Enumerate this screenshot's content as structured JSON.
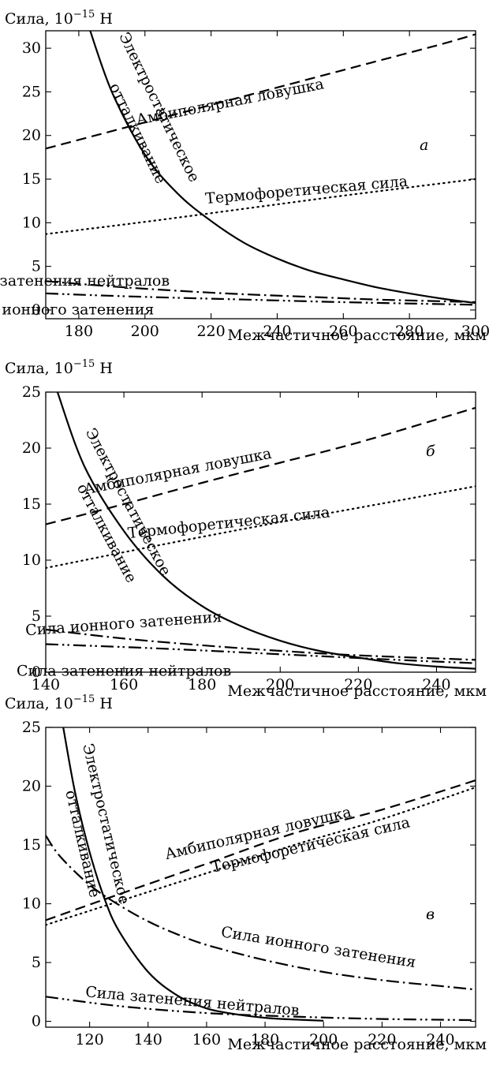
{
  "chart_data": [
    {
      "type": "line",
      "panel_label": "а",
      "ylabel": "Сила, 10⁻¹⁵ Н",
      "xlabel": "Межчастичное расстояние, мкм",
      "xlim": [
        170,
        300
      ],
      "ylim": [
        -1,
        32
      ],
      "xticks": [
        180,
        200,
        220,
        240,
        260,
        280,
        300
      ],
      "yticks": [
        0,
        5,
        10,
        15,
        20,
        25,
        30
      ],
      "grid": false,
      "series": [
        {
          "name": "Амбиполярная ловушка",
          "style": "dashed",
          "x": [
            170,
            185,
            200,
            215,
            230,
            245,
            260,
            275,
            290,
            300
          ],
          "y": [
            18.5,
            20.0,
            21.5,
            23.0,
            24.5,
            26.0,
            27.5,
            29.0,
            30.5,
            31.6
          ]
        },
        {
          "name": "Термофоретическая сила",
          "style": "dotted",
          "x": [
            170,
            200,
            230,
            260,
            300
          ],
          "y": [
            8.7,
            10.1,
            11.6,
            13.1,
            15.0
          ]
        },
        {
          "name": "Электростатическое отталкивание",
          "style": "solid",
          "x": [
            183,
            190,
            200,
            210,
            220,
            230,
            240,
            250,
            260,
            270,
            280,
            290,
            300
          ],
          "y": [
            32.5,
            25.0,
            17.8,
            13.3,
            10.2,
            7.7,
            5.9,
            4.5,
            3.5,
            2.6,
            1.9,
            1.3,
            0.8
          ]
        },
        {
          "name": "Сила затенения нейтралов",
          "style": "dashdot",
          "x": [
            170,
            190,
            210,
            230,
            250,
            270,
            290,
            300
          ],
          "y": [
            3.3,
            2.7,
            2.2,
            1.8,
            1.5,
            1.2,
            1.0,
            0.9
          ]
        },
        {
          "name": "Сила ионного затенения",
          "style": "dashdotdot",
          "x": [
            170,
            200,
            230,
            260,
            300
          ],
          "y": [
            1.9,
            1.5,
            1.2,
            0.9,
            0.6
          ]
        }
      ],
      "annotations": [
        {
          "text": "Амбиполярная ловушка",
          "x": 226,
          "y": 23.3,
          "angle_deg": -11
        },
        {
          "text": "Термофоретическая сила",
          "x": 249,
          "y": 13.2,
          "angle_deg": -5
        },
        {
          "text": "Электро­статическое",
          "x": 203,
          "y": 23.0,
          "angle_deg": 64
        },
        {
          "text": "отталкивание",
          "x": 196.5,
          "y": 20.0,
          "angle_deg": 64
        },
        {
          "text": "Сила затенения нейтралов",
          "x": 175,
          "y": 2.8,
          "angle_deg": 0
        },
        {
          "text": "Сила ионного затенения",
          "x": 173,
          "y": -0.5,
          "angle_deg": 0
        }
      ]
    },
    {
      "type": "line",
      "panel_label": "б",
      "ylabel": "Сила, 10⁻¹⁵ Н",
      "xlabel": "Межчастичное расстояние, мкм",
      "xlim": [
        140,
        250
      ],
      "ylim": [
        0,
        25
      ],
      "xticks": [
        140,
        160,
        180,
        200,
        220,
        240
      ],
      "yticks": [
        0,
        5,
        10,
        15,
        20,
        25
      ],
      "grid": false,
      "series": [
        {
          "name": "Амбиполярная ловушка",
          "style": "dashed",
          "x": [
            140,
            160,
            180,
            200,
            220,
            250
          ],
          "y": [
            13.2,
            15.0,
            16.9,
            18.7,
            20.5,
            23.6
          ]
        },
        {
          "name": "Термофоретическая сила",
          "style": "dotted",
          "x": [
            140,
            170,
            200,
            230,
            250
          ],
          "y": [
            9.3,
            11.4,
            13.4,
            15.3,
            16.6
          ]
        },
        {
          "name": "Электростатическое отталкивание",
          "style": "solid",
          "x": [
            143,
            150,
            160,
            170,
            180,
            190,
            200,
            210,
            220,
            230,
            240,
            250
          ],
          "y": [
            25.0,
            18.3,
            12.6,
            8.6,
            5.9,
            4.1,
            2.8,
            1.9,
            1.3,
            0.8,
            0.5,
            0.3
          ]
        },
        {
          "name": "Сила ионного затенения",
          "style": "dashdot",
          "x": [
            140,
            160,
            180,
            200,
            220,
            250
          ],
          "y": [
            3.8,
            3.0,
            2.4,
            1.9,
            1.5,
            1.1
          ]
        },
        {
          "name": "Сила затенения нейтралов",
          "style": "dashdotdot",
          "x": [
            140,
            170,
            200,
            230,
            250
          ],
          "y": [
            2.5,
            2.1,
            1.6,
            1.1,
            0.8
          ]
        }
      ],
      "annotations": [
        {
          "text": "Амбиполярная ловушка",
          "x": 174,
          "y": 17.5,
          "angle_deg": -11
        },
        {
          "text": "Термофоретическая сила",
          "x": 187,
          "y": 12.9,
          "angle_deg": -6
        },
        {
          "text": "Электростатическое",
          "x": 160,
          "y": 15.0,
          "angle_deg": 62
        },
        {
          "text": "отталкивание",
          "x": 154.5,
          "y": 12.2,
          "angle_deg": 62
        },
        {
          "text": "Сила ионного затенения",
          "x": 160,
          "y": 3.9,
          "angle_deg": -4
        },
        {
          "text": "Сила затенения нейтралов",
          "x": 160,
          "y": -0.3,
          "angle_deg": 0
        }
      ]
    },
    {
      "type": "line",
      "panel_label": "в",
      "ylabel": "Сила, 10⁻¹⁵ Н",
      "xlabel": "Межчастичное расстояние, мкм",
      "xlim": [
        105,
        252
      ],
      "ylim": [
        -0.5,
        25
      ],
      "xticks": [
        120,
        140,
        160,
        180,
        200,
        220,
        240
      ],
      "yticks": [
        0,
        5,
        10,
        15,
        20,
        25
      ],
      "grid": false,
      "series": [
        {
          "name": "Амбиполярная ловушка",
          "style": "dashed",
          "x": [
            105,
            130,
            160,
            190,
            220,
            252
          ],
          "y": [
            8.6,
            10.8,
            13.4,
            16.0,
            18.0,
            20.5
          ]
        },
        {
          "name": "Термофоретическая сила",
          "style": "dotted",
          "x": [
            105,
            130,
            160,
            190,
            220,
            252
          ],
          "y": [
            8.2,
            10.2,
            12.6,
            15.0,
            17.2,
            19.9
          ]
        },
        {
          "name": "Электростатическое отталкивание",
          "style": "solid",
          "x": [
            111,
            115,
            120,
            125,
            130,
            140,
            150,
            160,
            170,
            180,
            190,
            200
          ],
          "y": [
            25.0,
            19.5,
            14.4,
            10.5,
            7.7,
            4.2,
            2.2,
            1.1,
            0.6,
            0.3,
            0.15,
            0.05
          ]
        },
        {
          "name": "Сила ионного затенения",
          "style": "dashdot",
          "x": [
            105,
            110,
            120,
            130,
            140,
            150,
            160,
            180,
            200,
            220,
            240,
            252
          ],
          "y": [
            15.8,
            14.0,
            11.6,
            9.9,
            8.5,
            7.4,
            6.5,
            5.2,
            4.2,
            3.5,
            3.0,
            2.7
          ]
        },
        {
          "name": "Сила затенения нейтралов",
          "style": "dashdotdot",
          "x": [
            105,
            130,
            160,
            190,
            220,
            252
          ],
          "y": [
            2.1,
            1.3,
            0.7,
            0.4,
            0.2,
            0.1
          ]
        }
      ],
      "annotations": [
        {
          "text": "Амбиполярная ловушка",
          "x": 178,
          "y": 15.6,
          "angle_deg": -13
        },
        {
          "text": "Термофоретическая сила",
          "x": 196,
          "y": 14.6,
          "angle_deg": -13
        },
        {
          "text": "Электростатическое",
          "x": 124,
          "y": 16.7,
          "angle_deg": 77
        },
        {
          "text": "отталкивание",
          "x": 116,
          "y": 15.0,
          "angle_deg": 77
        },
        {
          "text": "Сила ионного затенения",
          "x": 198,
          "y": 5.9,
          "angle_deg": 9
        },
        {
          "text": "Сила затенения нейтралов",
          "x": 155,
          "y": 1.3,
          "angle_deg": 5
        }
      ]
    }
  ]
}
